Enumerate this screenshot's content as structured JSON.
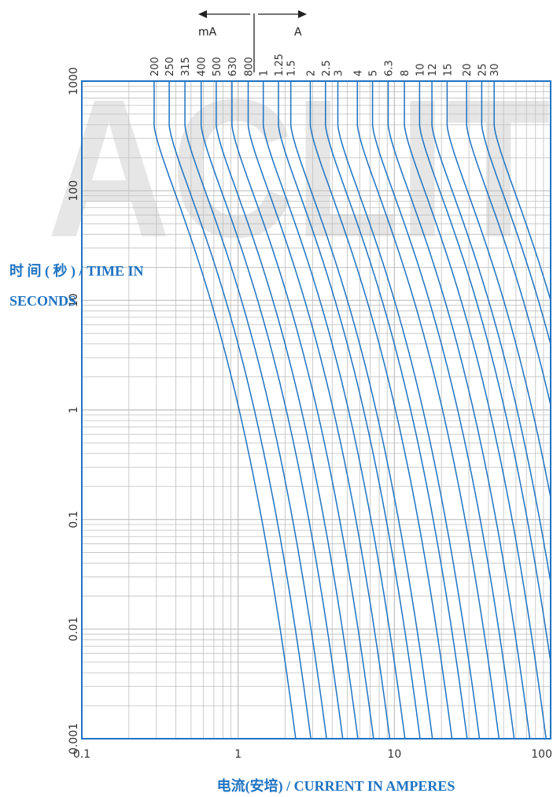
{
  "watermark": "ACLIT",
  "colors": {
    "curve": "#1f73c2",
    "frame": "#1f73c2",
    "grid": "#bfbfbf",
    "title": "#1f73c2"
  },
  "chart_data": {
    "type": "line",
    "x_scale": "log",
    "y_scale": "log",
    "xlim": [
      0.1,
      100
    ],
    "ylim": [
      0.001,
      1000
    ],
    "grid": true,
    "xlabel": "电流(安培) / CURRENT IN AMPERES",
    "ylabel_line1": "时 间 ( 秒 ) / TIME IN",
    "ylabel_line2": "SECONDS",
    "x_ticks": [
      {
        "value": 0.1,
        "label": "0.1"
      },
      {
        "value": 1,
        "label": "1"
      },
      {
        "value": 10,
        "label": "10"
      },
      {
        "value": 100,
        "label": "100"
      }
    ],
    "y_ticks": [
      {
        "value": 0.001,
        "label": "0.001"
      },
      {
        "value": 0.01,
        "label": "0.01"
      },
      {
        "value": 0.1,
        "label": "0.1"
      },
      {
        "value": 1,
        "label": "1"
      },
      {
        "value": 10,
        "label": "10"
      },
      {
        "value": 100,
        "label": "100"
      },
      {
        "value": 1000,
        "label": "1000"
      }
    ],
    "units": {
      "ma": "mA",
      "a": "A"
    },
    "series": [
      {
        "label": "200",
        "rating_a": 0.2
      },
      {
        "label": "250",
        "rating_a": 0.25
      },
      {
        "label": "315",
        "rating_a": 0.315
      },
      {
        "label": "400",
        "rating_a": 0.4
      },
      {
        "label": "500",
        "rating_a": 0.5
      },
      {
        "label": "630",
        "rating_a": 0.63
      },
      {
        "label": "800",
        "rating_a": 0.8
      },
      {
        "label": "1",
        "rating_a": 1
      },
      {
        "label": "1.25",
        "rating_a": 1.25
      },
      {
        "label": "1.5",
        "rating_a": 1.5
      },
      {
        "label": "2",
        "rating_a": 2
      },
      {
        "label": "2.5",
        "rating_a": 2.5
      },
      {
        "label": "3",
        "rating_a": 3
      },
      {
        "label": "4",
        "rating_a": 4
      },
      {
        "label": "5",
        "rating_a": 5
      },
      {
        "label": "6.3",
        "rating_a": 6.3
      },
      {
        "label": "8",
        "rating_a": 8
      },
      {
        "label": "10",
        "rating_a": 10
      },
      {
        "label": "12",
        "rating_a": 12
      },
      {
        "label": "15",
        "rating_a": 15
      },
      {
        "label": "20",
        "rating_a": 20
      },
      {
        "label": "25",
        "rating_a": 25
      },
      {
        "label": "30",
        "rating_a": 30
      }
    ]
  }
}
